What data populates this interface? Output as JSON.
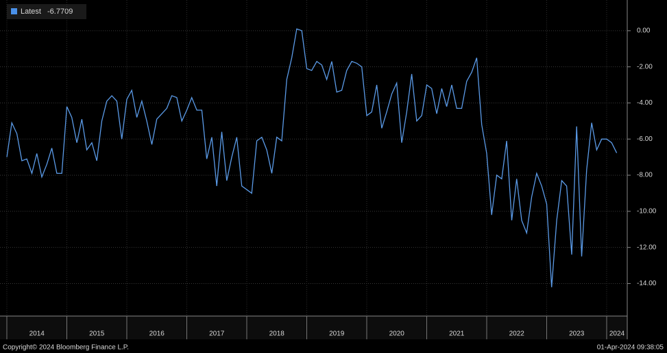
{
  "chart_data": {
    "type": "line",
    "categories": [
      "2014",
      "2015",
      "2016",
      "2017",
      "2018",
      "2019",
      "2020",
      "2021",
      "2022",
      "2023",
      "2024"
    ],
    "x": [
      2014,
      2014.083,
      2014.167,
      2014.25,
      2014.333,
      2014.417,
      2014.5,
      2014.583,
      2014.667,
      2014.75,
      2014.833,
      2014.917,
      2015,
      2015.083,
      2015.167,
      2015.25,
      2015.333,
      2015.417,
      2015.5,
      2015.583,
      2015.667,
      2015.75,
      2015.833,
      2015.917,
      2016,
      2016.083,
      2016.167,
      2016.25,
      2016.333,
      2016.417,
      2016.5,
      2016.583,
      2016.667,
      2016.75,
      2016.833,
      2016.917,
      2017,
      2017.083,
      2017.167,
      2017.25,
      2017.333,
      2017.417,
      2017.5,
      2017.583,
      2017.667,
      2017.75,
      2017.833,
      2017.917,
      2018,
      2018.083,
      2018.167,
      2018.25,
      2018.333,
      2018.417,
      2018.5,
      2018.583,
      2018.667,
      2018.75,
      2018.833,
      2018.917,
      2019,
      2019.083,
      2019.167,
      2019.25,
      2019.333,
      2019.417,
      2019.5,
      2019.583,
      2019.667,
      2019.75,
      2019.833,
      2019.917,
      2020,
      2020.083,
      2020.167,
      2020.25,
      2020.333,
      2020.417,
      2020.5,
      2020.583,
      2020.667,
      2020.75,
      2020.833,
      2020.917,
      2021,
      2021.083,
      2021.167,
      2021.25,
      2021.333,
      2021.417,
      2021.5,
      2021.583,
      2021.667,
      2021.75,
      2021.833,
      2021.917,
      2022,
      2022.083,
      2022.167,
      2022.25,
      2022.333,
      2022.417,
      2022.5,
      2022.583,
      2022.667,
      2022.75,
      2022.833,
      2022.917,
      2023,
      2023.083,
      2023.167,
      2023.25,
      2023.333,
      2023.417,
      2023.5,
      2023.583,
      2023.667,
      2023.75,
      2023.833,
      2023.917,
      2024,
      2024.083,
      2024.167
    ],
    "series": [
      {
        "name": "Latest",
        "color": "#5b9be8",
        "values": [
          -7.0,
          -5.1,
          -5.7,
          -7.2,
          -7.1,
          -7.9,
          -6.8,
          -8.1,
          -7.4,
          -6.5,
          -7.9,
          -7.9,
          -4.2,
          -4.8,
          -6.2,
          -4.9,
          -6.6,
          -6.2,
          -7.2,
          -5.0,
          -3.9,
          -3.6,
          -3.9,
          -6.0,
          -3.8,
          -3.3,
          -4.8,
          -3.9,
          -5.0,
          -6.3,
          -4.9,
          -4.6,
          -4.3,
          -3.6,
          -3.7,
          -5.0,
          -4.4,
          -3.7,
          -4.4,
          -4.4,
          -7.1,
          -5.9,
          -8.6,
          -5.6,
          -8.3,
          -7.0,
          -5.9,
          -8.6,
          -8.8,
          -9.0,
          -6.1,
          -5.9,
          -6.6,
          -7.9,
          -5.9,
          -6.1,
          -2.7,
          -1.5,
          0.1,
          0.0,
          -2.1,
          -2.2,
          -1.7,
          -1.9,
          -2.7,
          -1.7,
          -3.4,
          -3.3,
          -2.2,
          -1.7,
          -1.8,
          -2.0,
          -4.7,
          -4.5,
          -3.0,
          -5.4,
          -4.5,
          -3.5,
          -2.9,
          -6.2,
          -4.5,
          -2.4,
          -5.0,
          -4.7,
          -3.0,
          -3.2,
          -4.6,
          -3.2,
          -4.2,
          -3.0,
          -4.3,
          -4.3,
          -2.8,
          -2.3,
          -1.5,
          -5.2,
          -6.8,
          -10.2,
          -8.0,
          -8.2,
          -6.1,
          -10.5,
          -8.2,
          -10.5,
          -11.2,
          -9.2,
          -7.9,
          -8.6,
          -9.6,
          -14.2,
          -10.5,
          -8.3,
          -8.6,
          -12.4,
          -5.3,
          -12.5,
          -7.7,
          -5.1,
          -6.6,
          -6.0,
          -6.0,
          -6.2,
          -6.7709
        ]
      }
    ],
    "xlim": [
      2013.886,
      2024.343
    ],
    "ylim": [
      -15.8,
      1.7
    ],
    "yticks": [
      {
        "value": 0,
        "label": "0.00"
      },
      {
        "value": -2,
        "label": "-2.00"
      },
      {
        "value": -4,
        "label": "-4.00"
      },
      {
        "value": -6,
        "label": "-6.00"
      },
      {
        "value": -8,
        "label": "-8.00"
      },
      {
        "value": -10,
        "label": "-10.00"
      },
      {
        "value": -12,
        "label": "-12.00"
      },
      {
        "value": -14,
        "label": "-14.00"
      }
    ],
    "grid": true,
    "source": "Copyright© 2024 Bloomberg Finance L.P.",
    "timestamp": "01-Apr-2024 09:38:05"
  }
}
